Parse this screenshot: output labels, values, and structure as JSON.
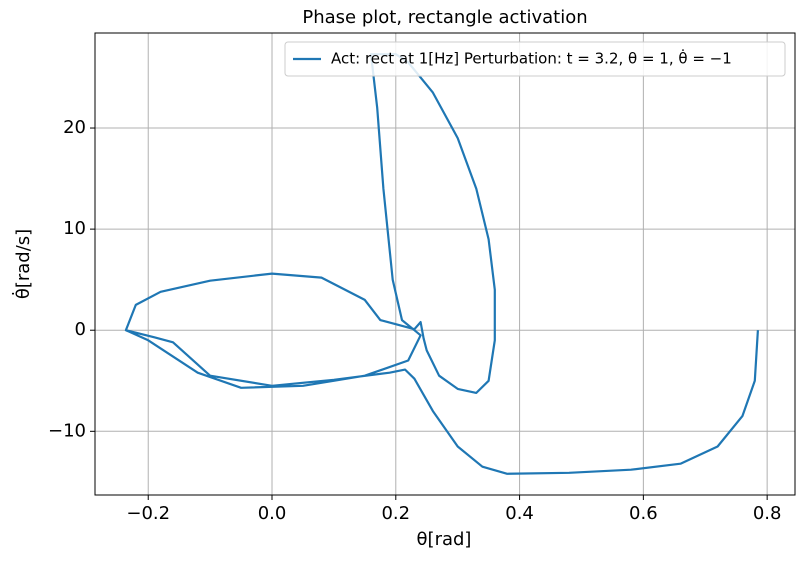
{
  "chart_data": {
    "type": "line",
    "title": "Phase plot, rectangle activation",
    "x_label": "θ[rad]",
    "y_label": "θ̇[rad/s]",
    "xlim": [
      -0.286,
      0.845
    ],
    "ylim": [
      -16.3,
      29.4
    ],
    "xticks": [
      {
        "value": -0.2,
        "label": "−0.2"
      },
      {
        "value": 0,
        "label": "0.0"
      },
      {
        "value": 0.2,
        "label": "0.2"
      },
      {
        "value": 0.4,
        "label": "0.4"
      },
      {
        "value": 0.6,
        "label": "0.6"
      },
      {
        "value": 0.8,
        "label": "0.8"
      }
    ],
    "yticks": [
      {
        "value": -10,
        "label": "−10"
      },
      0,
      10,
      20
    ],
    "grid": true,
    "legend": "upper right",
    "series": [
      {
        "name": "Act: rect at 1[Hz] Perturbation: t = 3.2, θ = 1, θ̇ = −1",
        "color": "#1f77b4",
        "x": [
          0.785,
          0.78,
          0.76,
          0.72,
          0.66,
          0.58,
          0.48,
          0.38,
          0.34,
          0.3,
          0.26,
          0.23,
          0.215,
          0.19,
          0.1,
          0.0,
          -0.1,
          -0.16,
          -0.19,
          -0.236,
          -0.22,
          -0.18,
          -0.1,
          0.0,
          0.08,
          0.15,
          0.175,
          0.2,
          0.23,
          0.24,
          0.245,
          0.25,
          0.27,
          0.3,
          0.33,
          0.35,
          0.36,
          0.36,
          0.35,
          0.33,
          0.3,
          0.26,
          0.22,
          0.2,
          0.16,
          0.17,
          0.18,
          0.195,
          0.21,
          0.23,
          0.24,
          0.22,
          0.15,
          0.05,
          -0.05,
          -0.12,
          -0.2,
          -0.236
        ],
        "values": [
          0,
          -5,
          -8.5,
          -11.5,
          -13.2,
          -13.8,
          -14.1,
          -14.2,
          -13.5,
          -11.5,
          -8,
          -4.8,
          -3.9,
          -4.2,
          -4.9,
          -5.5,
          -4.5,
          -1.2,
          -0.7,
          0,
          2.5,
          3.8,
          4.9,
          5.6,
          5.2,
          3,
          1,
          0.6,
          0.1,
          0.8,
          -0.8,
          -2,
          -4.5,
          -5.8,
          -6.2,
          -5,
          -1,
          4,
          9,
          14,
          19,
          23.5,
          26.5,
          27.3,
          27.3,
          22,
          14,
          5,
          1,
          0,
          -0.5,
          -3,
          -4.5,
          -5.5,
          -5.7,
          -4.2,
          -1,
          0
        ]
      }
    ]
  }
}
